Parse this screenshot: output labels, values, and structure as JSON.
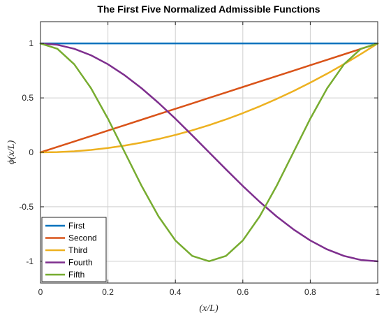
{
  "chart_data": {
    "type": "line",
    "title": "The First Five Normalized Admissible Functions",
    "xlabel": "(x/L)",
    "ylabel": "ϕ(x/L)",
    "xlim": [
      0,
      1
    ],
    "ylim": [
      -1.2,
      1.2
    ],
    "xticks": [
      0,
      0.2,
      0.4,
      0.6,
      0.8,
      1
    ],
    "xtick_labels": [
      "0",
      "0.2",
      "0.4",
      "0.6",
      "0.8",
      "1"
    ],
    "yticks": [
      -1,
      -0.5,
      0,
      0.5,
      1
    ],
    "ytick_labels": [
      "-1",
      "-0.5",
      "0",
      "0.5",
      "1"
    ],
    "grid": true,
    "legend_position": "bottom-left",
    "x": [
      0,
      0.05,
      0.1,
      0.15,
      0.2,
      0.25,
      0.3,
      0.35,
      0.4,
      0.45,
      0.5,
      0.55,
      0.6,
      0.65,
      0.7,
      0.75,
      0.8,
      0.85,
      0.9,
      0.95,
      1
    ],
    "series": [
      {
        "name": "First",
        "color": "#0072BD",
        "values": [
          1,
          1,
          1,
          1,
          1,
          1,
          1,
          1,
          1,
          1,
          1,
          1,
          1,
          1,
          1,
          1,
          1,
          1,
          1,
          1,
          1
        ]
      },
      {
        "name": "Second",
        "color": "#D95319",
        "values": [
          0,
          0.05,
          0.1,
          0.15,
          0.2,
          0.25,
          0.3,
          0.35,
          0.4,
          0.45,
          0.5,
          0.55,
          0.6,
          0.65,
          0.7,
          0.75,
          0.8,
          0.85,
          0.9,
          0.95,
          1
        ]
      },
      {
        "name": "Third",
        "color": "#EDB120",
        "values": [
          0,
          0.0025,
          0.01,
          0.0225,
          0.04,
          0.0625,
          0.09,
          0.1225,
          0.16,
          0.2025,
          0.25,
          0.3025,
          0.36,
          0.4225,
          0.49,
          0.5625,
          0.64,
          0.7225,
          0.81,
          0.9025,
          1
        ]
      },
      {
        "name": "Fourth",
        "color": "#7E2F8E",
        "values": [
          1,
          0.988,
          0.951,
          0.891,
          0.809,
          0.707,
          0.588,
          0.454,
          0.309,
          0.156,
          0,
          -0.156,
          -0.309,
          -0.454,
          -0.588,
          -0.707,
          -0.809,
          -0.891,
          -0.951,
          -0.988,
          -1
        ]
      },
      {
        "name": "Fifth",
        "color": "#77AC30",
        "values": [
          1,
          0.951,
          0.809,
          0.588,
          0.309,
          0,
          -0.309,
          -0.588,
          -0.809,
          -0.951,
          -1,
          -0.951,
          -0.809,
          -0.588,
          -0.309,
          0,
          0.309,
          0.588,
          0.809,
          0.951,
          1
        ]
      }
    ]
  }
}
